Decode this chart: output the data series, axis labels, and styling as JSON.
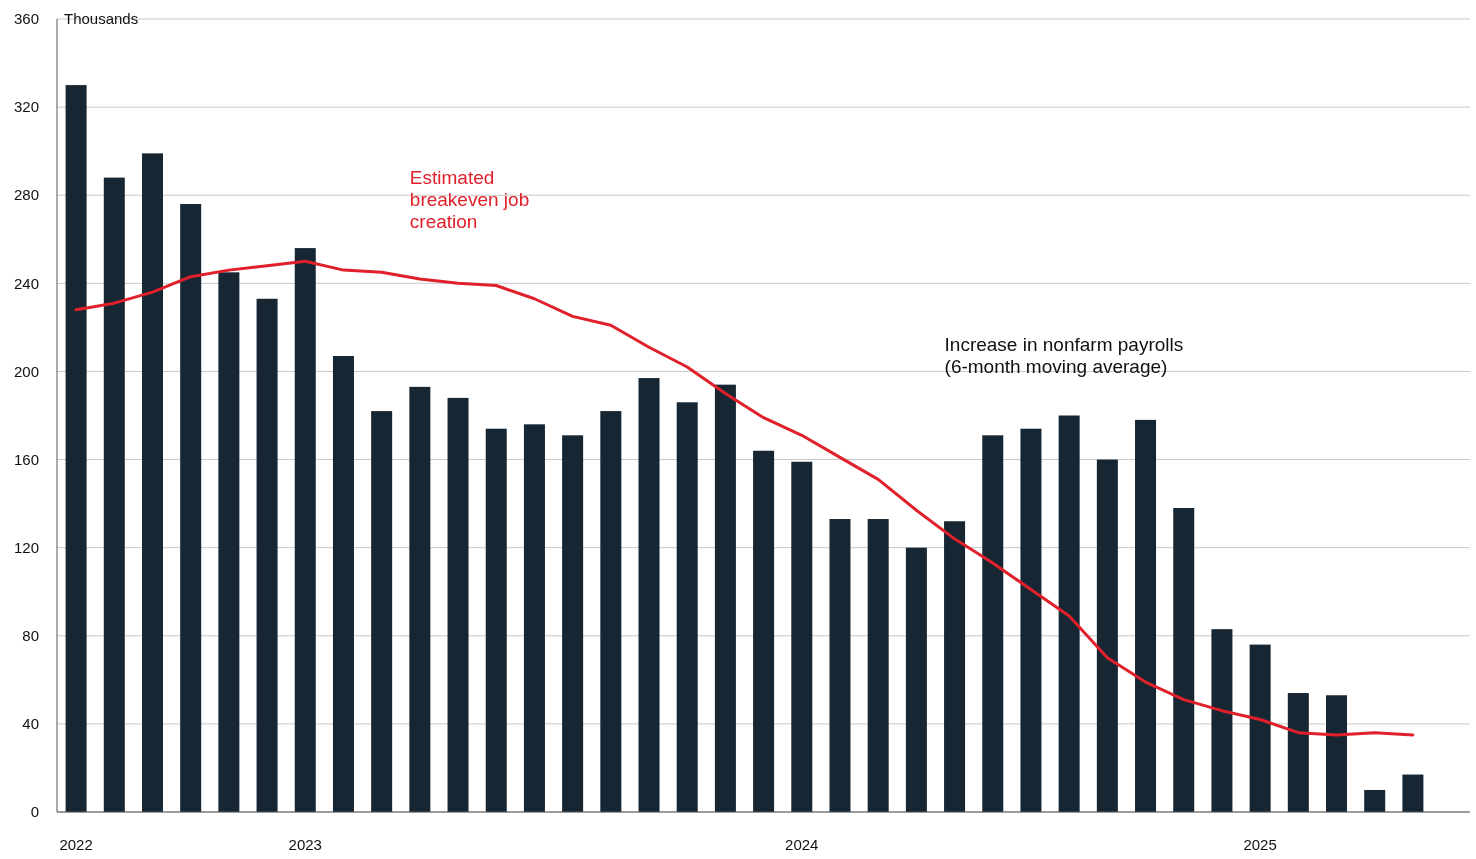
{
  "chart_data": {
    "type": "bar",
    "ylabel": "Thousands",
    "categories": [
      "2022",
      null,
      null,
      null,
      null,
      null,
      "2023",
      null,
      null,
      null,
      null,
      null,
      null,
      null,
      null,
      null,
      null,
      null,
      null,
      "2024",
      null,
      null,
      null,
      null,
      null,
      null,
      null,
      null,
      null,
      null,
      null,
      "2025",
      null,
      null,
      null,
      null
    ],
    "series": [
      {
        "name": "Increase in nonfarm payrolls (6-month moving average)",
        "color": "#172633",
        "values": [
          330,
          288,
          299,
          276,
          245,
          233,
          256,
          207,
          182,
          193,
          188,
          174,
          176,
          171,
          182,
          197,
          186,
          194,
          164,
          159,
          133,
          133,
          120,
          132,
          171,
          174,
          180,
          160,
          178,
          138,
          83,
          76,
          54,
          53,
          10,
          17
        ]
      },
      {
        "name": "Estimated breakeven job creation",
        "type": "line",
        "color": "#e0202a",
        "values": [
          228,
          231,
          236,
          243,
          246,
          248,
          250,
          246,
          245,
          242,
          240,
          239,
          233,
          225,
          221,
          211,
          202,
          190,
          179,
          171,
          161,
          151,
          137,
          124,
          113,
          101,
          89,
          70,
          59,
          51,
          46,
          42,
          36,
          35,
          36,
          35
        ]
      }
    ],
    "ylim": [
      0,
      360
    ],
    "yticks": [
      0,
      40,
      80,
      120,
      160,
      200,
      240,
      280,
      320,
      360
    ],
    "grid": "y"
  }
}
